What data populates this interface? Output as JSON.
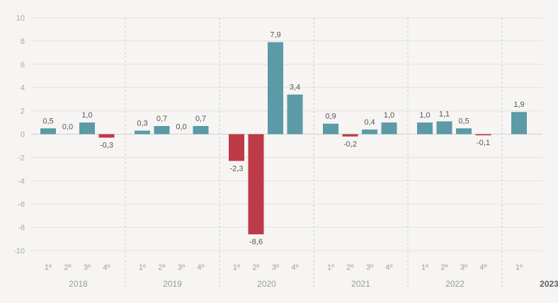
{
  "chart_data": {
    "type": "bar",
    "title": "",
    "xlabel": "",
    "ylabel": "",
    "ylim": [
      -10,
      10
    ],
    "yticks": [
      10,
      8,
      6,
      4,
      2,
      0,
      -2,
      -4,
      -6,
      -8,
      -10
    ],
    "grid": true,
    "colors": {
      "positive": "#5b9aa6",
      "negative": "#bf3a47"
    },
    "groups": [
      {
        "year": "2018",
        "quarters": [
          {
            "q": "1º",
            "value": 0.5,
            "label": "0,5"
          },
          {
            "q": "2º",
            "value": 0.0,
            "label": "0,0"
          },
          {
            "q": "3º",
            "value": 1.0,
            "label": "1,0"
          },
          {
            "q": "4º",
            "value": -0.3,
            "label": "-0,3"
          }
        ]
      },
      {
        "year": "2019",
        "quarters": [
          {
            "q": "1º",
            "value": 0.3,
            "label": "0,3"
          },
          {
            "q": "2º",
            "value": 0.7,
            "label": "0,7"
          },
          {
            "q": "3º",
            "value": 0.0,
            "label": "0,0"
          },
          {
            "q": "4º",
            "value": 0.7,
            "label": "0,7"
          }
        ]
      },
      {
        "year": "2020",
        "quarters": [
          {
            "q": "1º",
            "value": -2.3,
            "label": "-2,3"
          },
          {
            "q": "2º",
            "value": -8.6,
            "label": "-8,6"
          },
          {
            "q": "3º",
            "value": 7.9,
            "label": "7,9"
          },
          {
            "q": "4º",
            "value": 3.4,
            "label": "3,4"
          }
        ]
      },
      {
        "year": "2021",
        "quarters": [
          {
            "q": "1º",
            "value": 0.9,
            "label": "0,9"
          },
          {
            "q": "2º",
            "value": -0.2,
            "label": "-0,2"
          },
          {
            "q": "3º",
            "value": 0.4,
            "label": "0,4"
          },
          {
            "q": "4º",
            "value": 1.0,
            "label": "1,0"
          }
        ]
      },
      {
        "year": "2022",
        "quarters": [
          {
            "q": "1º",
            "value": 1.0,
            "label": "1,0"
          },
          {
            "q": "2º",
            "value": 1.1,
            "label": "1,1"
          },
          {
            "q": "3º",
            "value": 0.5,
            "label": "0,5"
          },
          {
            "q": "4º",
            "value": -0.1,
            "label": "-0,1"
          }
        ]
      },
      {
        "year": "2023",
        "bold": true,
        "quarters": [
          {
            "q": "1º",
            "value": 1.9,
            "label": "1,9"
          }
        ]
      }
    ]
  }
}
